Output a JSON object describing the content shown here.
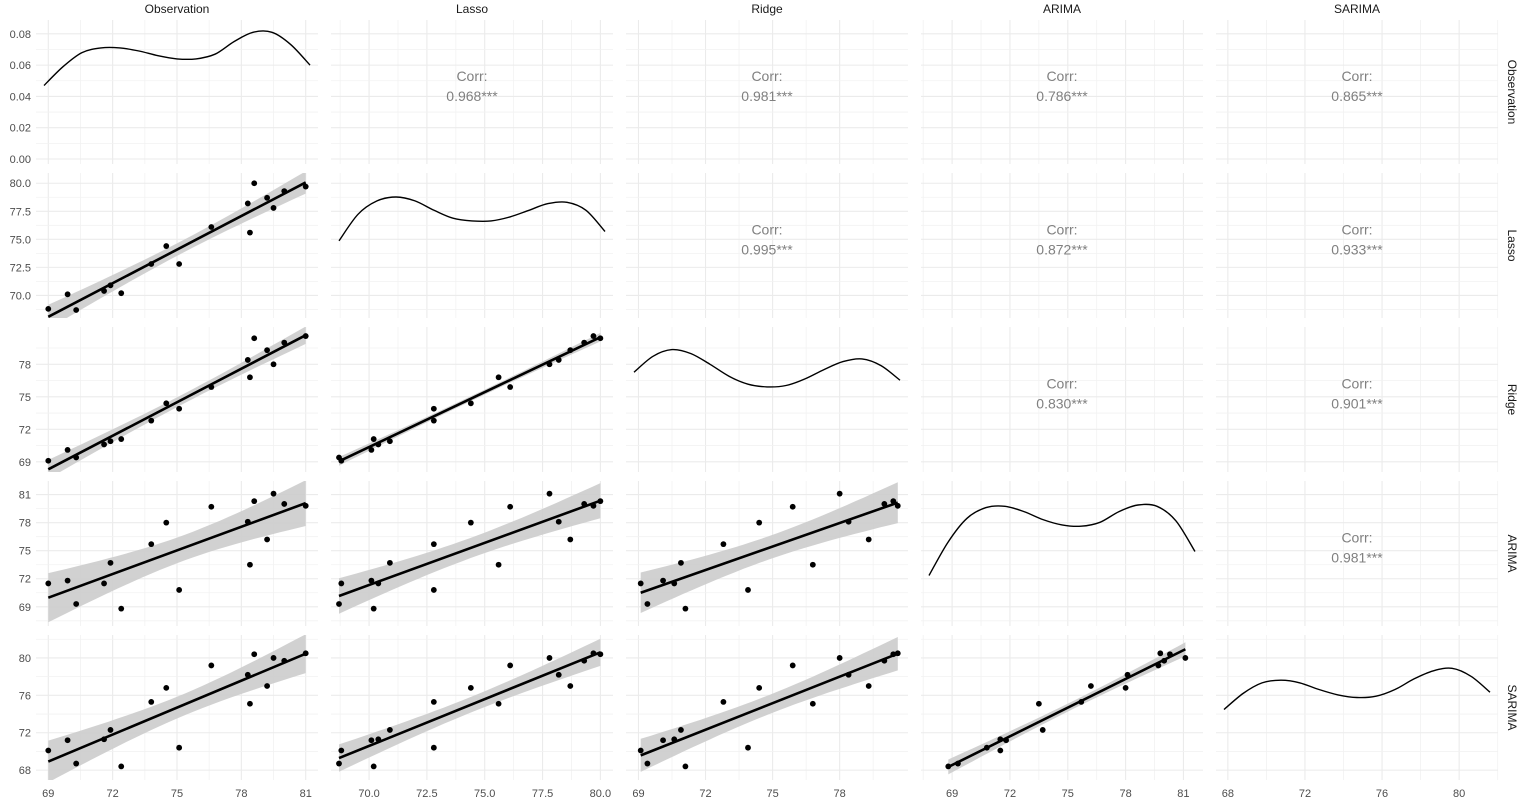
{
  "chart_data": {
    "type": "scatter",
    "variables": [
      "Observation",
      "Lasso",
      "Ridge",
      "ARIMA",
      "SARIMA"
    ],
    "corr_label": "Corr:",
    "correlations": [
      {
        "row": 0,
        "col": 1,
        "value": "0.968***"
      },
      {
        "row": 0,
        "col": 2,
        "value": "0.981***"
      },
      {
        "row": 0,
        "col": 3,
        "value": "0.786***"
      },
      {
        "row": 0,
        "col": 4,
        "value": "0.865***"
      },
      {
        "row": 1,
        "col": 2,
        "value": "0.995***"
      },
      {
        "row": 1,
        "col": 3,
        "value": "0.872***"
      },
      {
        "row": 1,
        "col": 4,
        "value": "0.933***"
      },
      {
        "row": 2,
        "col": 3,
        "value": "0.830***"
      },
      {
        "row": 2,
        "col": 4,
        "value": "0.901***"
      },
      {
        "row": 3,
        "col": 4,
        "value": "0.981***"
      }
    ],
    "ranges": {
      "Observation": [
        68.8,
        81.2
      ],
      "Lasso": [
        68.7,
        80.2
      ],
      "Ridge": [
        68.8,
        80.7
      ],
      "ARIMA": [
        67.8,
        81.6
      ],
      "SARIMA": [
        67.8,
        81.6
      ]
    },
    "ticks": {
      "Observation": [
        "69",
        "72",
        "75",
        "78",
        "81"
      ],
      "Lasso": [
        "70.0",
        "72.5",
        "75.0",
        "77.5",
        "80.0"
      ],
      "Ridge": [
        "69",
        "72",
        "75",
        "78"
      ],
      "ARIMA": [
        "69",
        "72",
        "75",
        "78",
        "81"
      ],
      "SARIMA": [
        "68",
        "72",
        "76",
        "80"
      ]
    },
    "density_axis": {
      "range": [
        0,
        0.085
      ],
      "ticks": [
        "0.00",
        "0.02",
        "0.04",
        "0.06",
        "0.08"
      ]
    },
    "observations": {
      "Observation": [
        69.0,
        69.9,
        70.3,
        71.6,
        71.9,
        72.4,
        73.8,
        74.5,
        75.1,
        76.6,
        78.3,
        78.4,
        78.6,
        79.2,
        79.5,
        80.0,
        81.0
      ],
      "Lasso": [
        68.8,
        70.1,
        68.7,
        70.4,
        70.9,
        70.2,
        72.8,
        74.4,
        72.8,
        76.1,
        78.2,
        75.6,
        80.0,
        78.7,
        77.8,
        79.3,
        79.7
      ],
      "Ridge": [
        69.1,
        70.1,
        69.4,
        70.6,
        70.9,
        71.1,
        72.8,
        74.4,
        73.9,
        75.9,
        78.4,
        76.8,
        80.4,
        79.3,
        78.0,
        80.0,
        80.6
      ],
      "ARIMA": [
        71.5,
        71.8,
        69.3,
        71.5,
        73.7,
        68.8,
        75.7,
        78.0,
        70.8,
        79.7,
        78.1,
        73.5,
        80.3,
        76.2,
        81.1,
        80.0,
        79.8
      ],
      "SARIMA": [
        70.1,
        71.2,
        68.7,
        71.3,
        72.3,
        68.4,
        75.3,
        76.8,
        70.4,
        79.2,
        78.2,
        75.1,
        80.4,
        77.0,
        80.0,
        79.7,
        80.5
      ]
    },
    "densities": {
      "Observation": [
        0.047,
        0.059,
        0.068,
        0.071,
        0.071,
        0.069,
        0.066,
        0.064,
        0.064,
        0.067,
        0.075,
        0.081,
        0.081,
        0.073,
        0.06
      ],
      "Lasso": [
        0.55,
        0.75,
        0.85,
        0.88,
        0.85,
        0.78,
        0.72,
        0.7,
        0.7,
        0.73,
        0.78,
        0.83,
        0.84,
        0.78,
        0.62
      ],
      "Ridge": [
        0.72,
        0.84,
        0.89,
        0.86,
        0.78,
        0.69,
        0.63,
        0.61,
        0.62,
        0.67,
        0.74,
        0.8,
        0.82,
        0.77,
        0.66
      ],
      "ARIMA": [
        0.35,
        0.6,
        0.78,
        0.86,
        0.87,
        0.83,
        0.77,
        0.73,
        0.72,
        0.75,
        0.83,
        0.88,
        0.87,
        0.76,
        0.53
      ],
      "SARIMA": [
        0.5,
        0.62,
        0.7,
        0.72,
        0.7,
        0.65,
        0.61,
        0.59,
        0.6,
        0.65,
        0.73,
        0.79,
        0.81,
        0.75,
        0.63
      ]
    },
    "grid": true,
    "smoother": "linear fit with confidence band",
    "colors": {
      "points": "#000000",
      "band": "#cccccc",
      "grid": "#ebebeb",
      "text": "#4d4d4d",
      "corr_text": "#808080"
    }
  }
}
